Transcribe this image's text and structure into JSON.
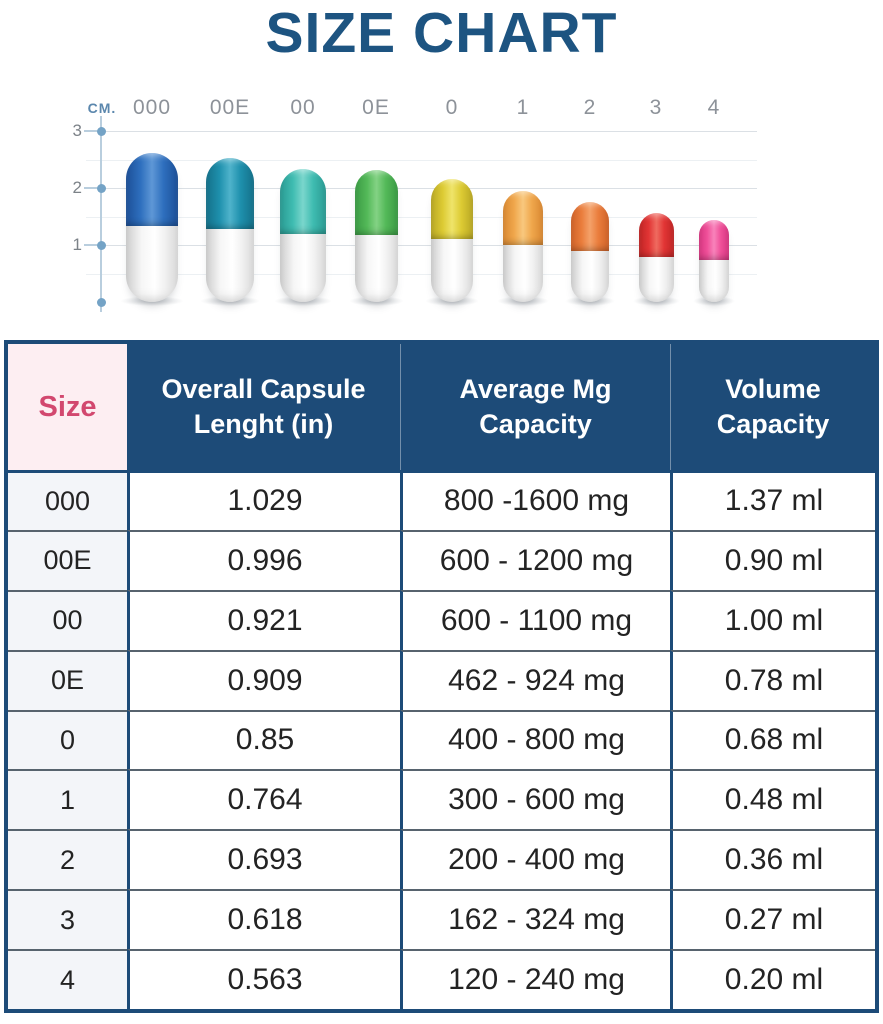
{
  "title": "SIZE CHART",
  "colors": {
    "title_navy": "#1d5481",
    "table_navy": "#1d4b78",
    "size_header_text_pink": "#d2486f",
    "size_header_bg_pink": "#fdeef2",
    "size_column_bg": "#f3f5f9",
    "axis_blue": "#74a3c6",
    "label_gray": "#8d9299"
  },
  "chart": {
    "axis_unit": "CM.",
    "yticks": [
      3,
      2,
      1
    ],
    "capsules": [
      {
        "label": "000",
        "height_cm": 2.61,
        "color": "#2e6fbe",
        "color_dark": "#1c4f97",
        "color_light": "#5e97d6"
      },
      {
        "label": "00E",
        "height_cm": 2.53,
        "color": "#1e90ad",
        "color_dark": "#147089",
        "color_light": "#4fb3cb"
      },
      {
        "label": "00",
        "height_cm": 2.34,
        "color": "#3fbcb1",
        "color_dark": "#2a9a92",
        "color_light": "#7ad6cc"
      },
      {
        "label": "0E",
        "height_cm": 2.31,
        "color": "#53b958",
        "color_dark": "#3a9a44",
        "color_light": "#83d284"
      },
      {
        "label": "0",
        "height_cm": 2.16,
        "color": "#ddcb33",
        "color_dark": "#b8a724",
        "color_light": "#efe46a"
      },
      {
        "label": "1",
        "height_cm": 1.94,
        "color": "#f0a74c",
        "color_dark": "#d98832",
        "color_light": "#f8c87e"
      },
      {
        "label": "2",
        "height_cm": 1.76,
        "color": "#ea7d3c",
        "color_dark": "#cf6228",
        "color_light": "#f4a169"
      },
      {
        "label": "3",
        "height_cm": 1.57,
        "color": "#e23535",
        "color_dark": "#bf2424",
        "color_light": "#ef6b60"
      },
      {
        "label": "4",
        "height_cm": 1.43,
        "color": "#f0519a",
        "color_dark": "#d63580",
        "color_light": "#f883bb"
      }
    ]
  },
  "table": {
    "headers": {
      "size": "Size",
      "length_l1": "Overall Capsule",
      "length_l2": "Lenght (in)",
      "mg_l1": "Average Mg",
      "mg_l2": "Capacity",
      "vol_l1": "Volume",
      "vol_l2": "Capacity"
    },
    "rows": [
      [
        "000",
        "1.029",
        "800 -1600 mg",
        "1.37 ml"
      ],
      [
        "00E",
        "0.996",
        "600 - 1200 mg",
        "0.90 ml"
      ],
      [
        "00",
        "0.921",
        "600 - 1100 mg",
        "1.00 ml"
      ],
      [
        "0E",
        "0.909",
        "462 - 924 mg",
        "0.78 ml"
      ],
      [
        "0",
        "0.85",
        "400 - 800 mg",
        "0.68 ml"
      ],
      [
        "1",
        "0.764",
        "300 - 600 mg",
        "0.48 ml"
      ],
      [
        "2",
        "0.693",
        "200 - 400 mg",
        "0.36 ml"
      ],
      [
        "3",
        "0.618",
        "162 - 324 mg",
        "0.27 ml"
      ],
      [
        "4",
        "0.563",
        "120 - 240 mg",
        "0.20 ml"
      ]
    ]
  },
  "chart_data": [
    {
      "type": "bar",
      "title": "SIZE CHART",
      "categories": [
        "000",
        "00E",
        "00",
        "0E",
        "0",
        "1",
        "2",
        "3",
        "4"
      ],
      "values": [
        2.61,
        2.53,
        2.34,
        2.31,
        2.16,
        1.94,
        1.76,
        1.57,
        1.43
      ],
      "xlabel": "",
      "ylabel": "CM.",
      "ylim": [
        0,
        3
      ],
      "yticks": [
        1,
        2,
        3
      ],
      "grid": true,
      "legend_position": "none"
    },
    {
      "type": "table",
      "headers": [
        "Size",
        "Overall Capsule Lenght (in)",
        "Average Mg Capacity",
        "Volume Capacity"
      ],
      "rows": [
        [
          "000",
          "1.029",
          "800 -1600 mg",
          "1.37 ml"
        ],
        [
          "00E",
          "0.996",
          "600 - 1200 mg",
          "0.90 ml"
        ],
        [
          "00",
          "0.921",
          "600 - 1100 mg",
          "1.00 ml"
        ],
        [
          "0E",
          "0.909",
          "462 - 924 mg",
          "0.78 ml"
        ],
        [
          "0",
          "0.85",
          "400 - 800 mg",
          "0.68 ml"
        ],
        [
          "1",
          "0.764",
          "300 - 600 mg",
          "0.48 ml"
        ],
        [
          "2",
          "0.693",
          "200 - 400 mg",
          "0.36 ml"
        ],
        [
          "3",
          "0.618",
          "162 - 324 mg",
          "0.27 ml"
        ],
        [
          "4",
          "0.563",
          "120 - 240 mg",
          "0.20 ml"
        ]
      ]
    }
  ]
}
